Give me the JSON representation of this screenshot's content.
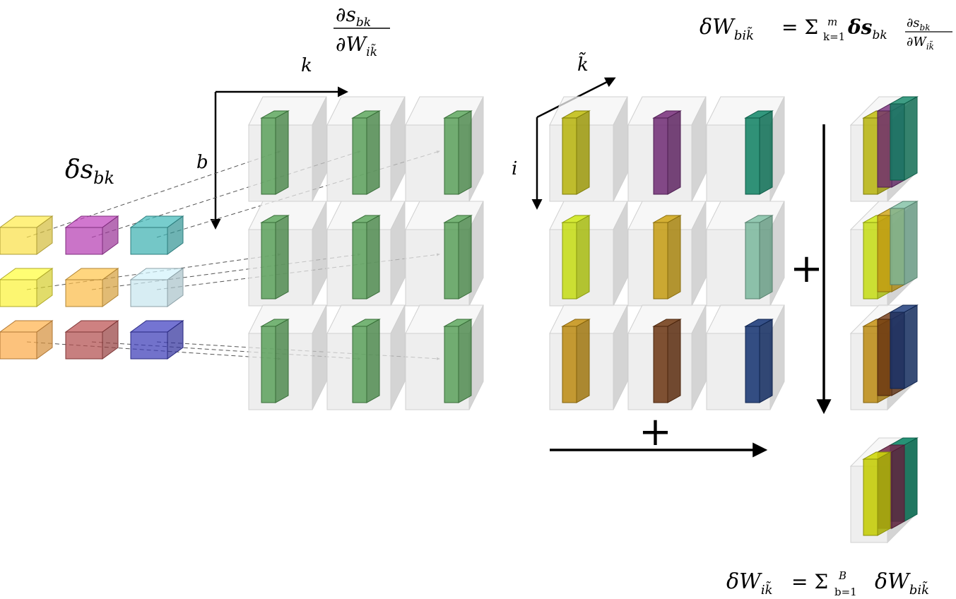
{
  "labels": {
    "delta_s": "δs",
    "delta_s_sub": "bk",
    "axis_k": "k",
    "axis_b": "b",
    "axis_ktilde": "k̃",
    "axis_i": "i",
    "plus_right": "+",
    "plus_bottom": "+"
  },
  "formulas": {
    "derivative": {
      "num": "∂s",
      "num_sub": "bk",
      "den": "∂W",
      "den_sub": "ik̃"
    },
    "top_right": {
      "lhs": "δW",
      "lhs_sub": "bik̃",
      "rhs": "= Σ",
      "lim_top": "m",
      "lim_bot": "k=1",
      "term": "δs",
      "term_sub": "bk",
      "frac_num": "∂s",
      "frac_num_sub": "bk",
      "frac_den": "∂W",
      "frac_den_sub": "ik̃"
    },
    "bottom_right": {
      "lhs": "δW",
      "lhs_sub": "ik̃",
      "rhs": "= Σ",
      "lim_top": "B",
      "lim_bot": "b=1",
      "term": "δW",
      "term_sub": "bik̃"
    }
  },
  "colors": {
    "delta_s_grid": [
      [
        "#f9e04a",
        "#b63fb3",
        "#3fb1b1"
      ],
      [
        "#fbf23a",
        "#fbbd4a",
        "#c8e6ef"
      ],
      [
        "#fbaa4a",
        "#b24d4d",
        "#3b3bb7"
      ]
    ],
    "derivative_bar": "#4e9a4e",
    "weighted_grid": [
      [
        "#b6b30a",
        "#6f2a73",
        "#0e8062"
      ],
      [
        "#c4dc12",
        "#c49b10",
        "#7ab79c"
      ],
      [
        "#bb8a10",
        "#6a3410",
        "#12306e"
      ]
    ],
    "ghost": "#e6e6e6"
  }
}
